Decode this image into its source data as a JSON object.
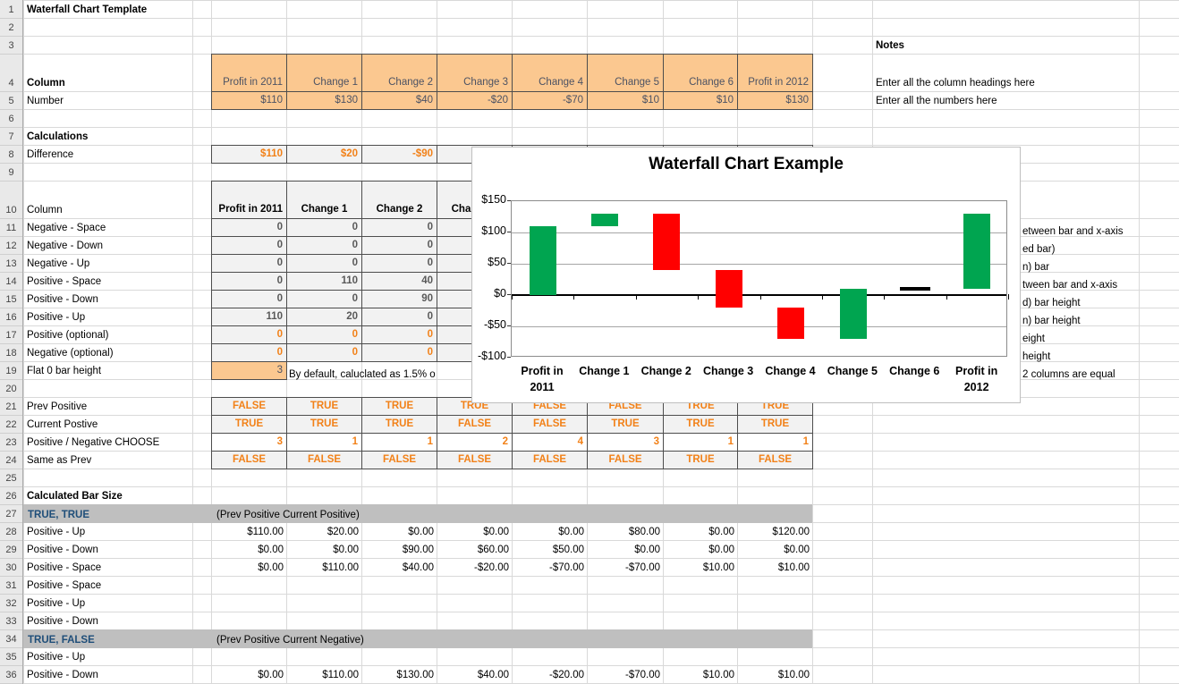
{
  "app": {
    "title": "Waterfall Chart Template"
  },
  "colors": {
    "peach_fill": "#FBC890",
    "gray_fill": "#F2F2F2",
    "banner_fill": "#BFBFBF",
    "orange_text": "#F28118",
    "slate_text": "#4C5263",
    "banner_blue_text": "#1F4E79",
    "bar_green": "#00A550",
    "bar_red": "#FF0000",
    "bar_flat": "#000000"
  },
  "sheet": {
    "row_count": 36,
    "rows": [
      {
        "n": 1,
        "a": "Waterfall Chart Template",
        "as": "lb"
      },
      {
        "n": 4,
        "a": "Column",
        "as": "lb",
        "vals": [
          "Profit in 2011",
          "Change 1",
          "Change 2",
          "Change 3",
          "Change 4",
          "Change 5",
          "Change 6",
          "Profit in 2012"
        ],
        "vs": "ph"
      },
      {
        "n": 5,
        "a": "Number",
        "vals": [
          "$110",
          "$130",
          "$40",
          "-$20",
          "-$70",
          "$10",
          "$10",
          "$130"
        ],
        "vs": "pv"
      },
      {
        "n": 7,
        "a": "Calculations",
        "as": "lb"
      },
      {
        "n": 8,
        "a": "Difference",
        "vals": [
          "$110",
          "$20",
          "-$90",
          "",
          "",
          "",
          "",
          ""
        ],
        "vs": "og"
      },
      {
        "n": 10,
        "a": "Column",
        "vals": [
          "Profit in 2011",
          "Change 1",
          "Change 2",
          "Change 3",
          "",
          "",
          "",
          ""
        ],
        "vs": "gh"
      },
      {
        "n": 11,
        "a": "Negative - Space",
        "vals": [
          "0",
          "0",
          "0",
          "",
          "",
          "",
          "",
          ""
        ],
        "vs": "gn"
      },
      {
        "n": 12,
        "a": "Negative - Down",
        "vals": [
          "0",
          "0",
          "0",
          "",
          "",
          "",
          "",
          ""
        ],
        "vs": "gn"
      },
      {
        "n": 13,
        "a": "Negative - Up",
        "vals": [
          "0",
          "0",
          "0",
          "",
          "",
          "",
          "",
          ""
        ],
        "vs": "gn"
      },
      {
        "n": 14,
        "a": "Positive - Space",
        "vals": [
          "0",
          "110",
          "40",
          "",
          "",
          "",
          "",
          ""
        ],
        "vs": "gn"
      },
      {
        "n": 15,
        "a": "Positive - Down",
        "vals": [
          "0",
          "0",
          "90",
          "",
          "",
          "",
          "",
          ""
        ],
        "vs": "gn"
      },
      {
        "n": 16,
        "a": "Positive - Up",
        "vals": [
          "110",
          "20",
          "0",
          "",
          "",
          "",
          "",
          ""
        ],
        "vs": "gn"
      },
      {
        "n": 17,
        "a": "Positive (optional)",
        "vals": [
          "0",
          "0",
          "0",
          "",
          "",
          "",
          "",
          ""
        ],
        "vs": "on"
      },
      {
        "n": 18,
        "a": "Negative (optional)",
        "vals": [
          "0",
          "0",
          "0",
          "",
          "",
          "",
          "",
          ""
        ],
        "vs": "on"
      },
      {
        "n": 19,
        "a": "Flat 0 bar height",
        "vals": [
          "3"
        ],
        "vs": "pn"
      },
      {
        "n": 21,
        "a": "Prev Positive",
        "vals": [
          "FALSE",
          "TRUE",
          "TRUE",
          "TRUE",
          "FALSE",
          "FALSE",
          "TRUE",
          "TRUE"
        ],
        "vs": "bl"
      },
      {
        "n": 22,
        "a": "Current Postive",
        "vals": [
          "TRUE",
          "TRUE",
          "TRUE",
          "FALSE",
          "FALSE",
          "TRUE",
          "TRUE",
          "TRUE"
        ],
        "vs": "bl"
      },
      {
        "n": 23,
        "a": "Positive / Negative CHOOSE",
        "vals": [
          "3",
          "1",
          "1",
          "2",
          "4",
          "3",
          "1",
          "1"
        ],
        "vs": "nw"
      },
      {
        "n": 24,
        "a": "Same as Prev",
        "vals": [
          "FALSE",
          "FALSE",
          "FALSE",
          "FALSE",
          "FALSE",
          "FALSE",
          "TRUE",
          "FALSE"
        ],
        "vs": "bl"
      },
      {
        "n": 26,
        "a": "Calculated Bar Size",
        "as": "lb"
      },
      {
        "n": 28,
        "a": "Positive - Up",
        "vals": [
          "$110.00",
          "$20.00",
          "$0.00",
          "$0.00",
          "$0.00",
          "$80.00",
          "$0.00",
          "$120.00"
        ],
        "vs": "mv"
      },
      {
        "n": 29,
        "a": "Positive - Down",
        "vals": [
          "$0.00",
          "$0.00",
          "$90.00",
          "$60.00",
          "$50.00",
          "$0.00",
          "$0.00",
          "$0.00"
        ],
        "vs": "mv"
      },
      {
        "n": 30,
        "a": "Positive - Space",
        "vals": [
          "$0.00",
          "$110.00",
          "$40.00",
          "-$20.00",
          "-$70.00",
          "-$70.00",
          "$10.00",
          "$10.00"
        ],
        "vs": "mv"
      },
      {
        "n": 31,
        "a": "Positive - Space"
      },
      {
        "n": 32,
        "a": "Positive - Up"
      },
      {
        "n": 33,
        "a": "Positive - Down"
      },
      {
        "n": 35,
        "a": "Positive - Up"
      },
      {
        "n": 36,
        "a": "Positive - Down",
        "vals": [
          "$0.00",
          "$110.00",
          "$130.00",
          "$40.00",
          "-$20.00",
          "-$70.00",
          "$10.00",
          "$10.00"
        ],
        "vs": "mv"
      }
    ],
    "banners": [
      {
        "n": 27,
        "label": "TRUE, TRUE",
        "note": "(Prev Positive Current Positive)"
      },
      {
        "n": 34,
        "label": "TRUE, FALSE",
        "note": "(Prev Positive Current Negative)"
      }
    ],
    "notes_col": [
      {
        "n": 3,
        "t": "Notes",
        "s": "lb"
      },
      {
        "n": 4,
        "t": "Enter all the column headings here",
        "s": "pl"
      },
      {
        "n": 5,
        "t": "Enter all the numbers here",
        "s": "pl"
      }
    ],
    "free_texts": [
      {
        "n": 19,
        "t": "By default, caluclated as 1.5% o"
      }
    ],
    "note_fragments": [
      {
        "n": 11,
        "t": "etween bar and x-axis"
      },
      {
        "n": 12,
        "t": "ed bar)"
      },
      {
        "n": 13,
        "t": "n) bar"
      },
      {
        "n": 14,
        "t": "tween bar and x-axis"
      },
      {
        "n": 15,
        "t": "d) bar height"
      },
      {
        "n": 16,
        "t": "n) bar height"
      },
      {
        "n": 17,
        "t": "eight"
      },
      {
        "n": 18,
        "t": "height"
      },
      {
        "n": 19,
        "t": "2 columns are equal"
      }
    ]
  },
  "chart": {
    "title": "Waterfall Chart Example",
    "y_labels": [
      "$150",
      "$100",
      "$50",
      "$0",
      "-$50",
      "-$100"
    ],
    "y_values": [
      150,
      100,
      50,
      0,
      -50,
      -100
    ],
    "gridline_values": [
      100,
      50,
      -50
    ],
    "categories": [
      "Profit in 2011",
      "Change 1",
      "Change 2",
      "Change 3",
      "Change 4",
      "Change 5",
      "Change 6",
      "Profit in 2012"
    ],
    "bars": [
      {
        "cat": "Profit in 2011",
        "from": 0,
        "to": 110,
        "kind": "up"
      },
      {
        "cat": "Change 1",
        "from": 110,
        "to": 130,
        "kind": "up"
      },
      {
        "cat": "Change 2",
        "from": 130,
        "to": 40,
        "kind": "down"
      },
      {
        "cat": "Change 3",
        "from": 40,
        "to": -20,
        "kind": "down"
      },
      {
        "cat": "Change 4",
        "from": -20,
        "to": -70,
        "kind": "down"
      },
      {
        "cat": "Change 5",
        "from": -70,
        "to": 10,
        "kind": "up"
      },
      {
        "cat": "Change 6",
        "from": 10,
        "to": 10,
        "kind": "flat"
      },
      {
        "cat": "Profit in 2012",
        "from": 10,
        "to": 130,
        "kind": "up"
      }
    ]
  },
  "chart_data": {
    "type": "bar",
    "subtype": "waterfall",
    "title": "Waterfall Chart Example",
    "categories": [
      "Profit in 2011",
      "Change 1",
      "Change 2",
      "Change 3",
      "Change 4",
      "Change 5",
      "Change 6",
      "Profit in 2012"
    ],
    "segments": [
      {
        "category": "Profit in 2011",
        "start": 0,
        "end": 110,
        "color": "green"
      },
      {
        "category": "Change 1",
        "start": 110,
        "end": 130,
        "color": "green"
      },
      {
        "category": "Change 2",
        "start": 130,
        "end": 40,
        "color": "red"
      },
      {
        "category": "Change 3",
        "start": 40,
        "end": -20,
        "color": "red"
      },
      {
        "category": "Change 4",
        "start": -20,
        "end": -70,
        "color": "red"
      },
      {
        "category": "Change 5",
        "start": -70,
        "end": 10,
        "color": "green"
      },
      {
        "category": "Change 6",
        "start": 10,
        "end": 10,
        "color": "black-flat"
      },
      {
        "category": "Profit in 2012",
        "start": 10,
        "end": 130,
        "color": "green"
      }
    ],
    "ylim": [
      -100,
      150
    ],
    "yticks": [
      "$150",
      "$100",
      "$50",
      "$0",
      "-$50",
      "-$100"
    ],
    "grid": true,
    "legend_position": "none"
  }
}
